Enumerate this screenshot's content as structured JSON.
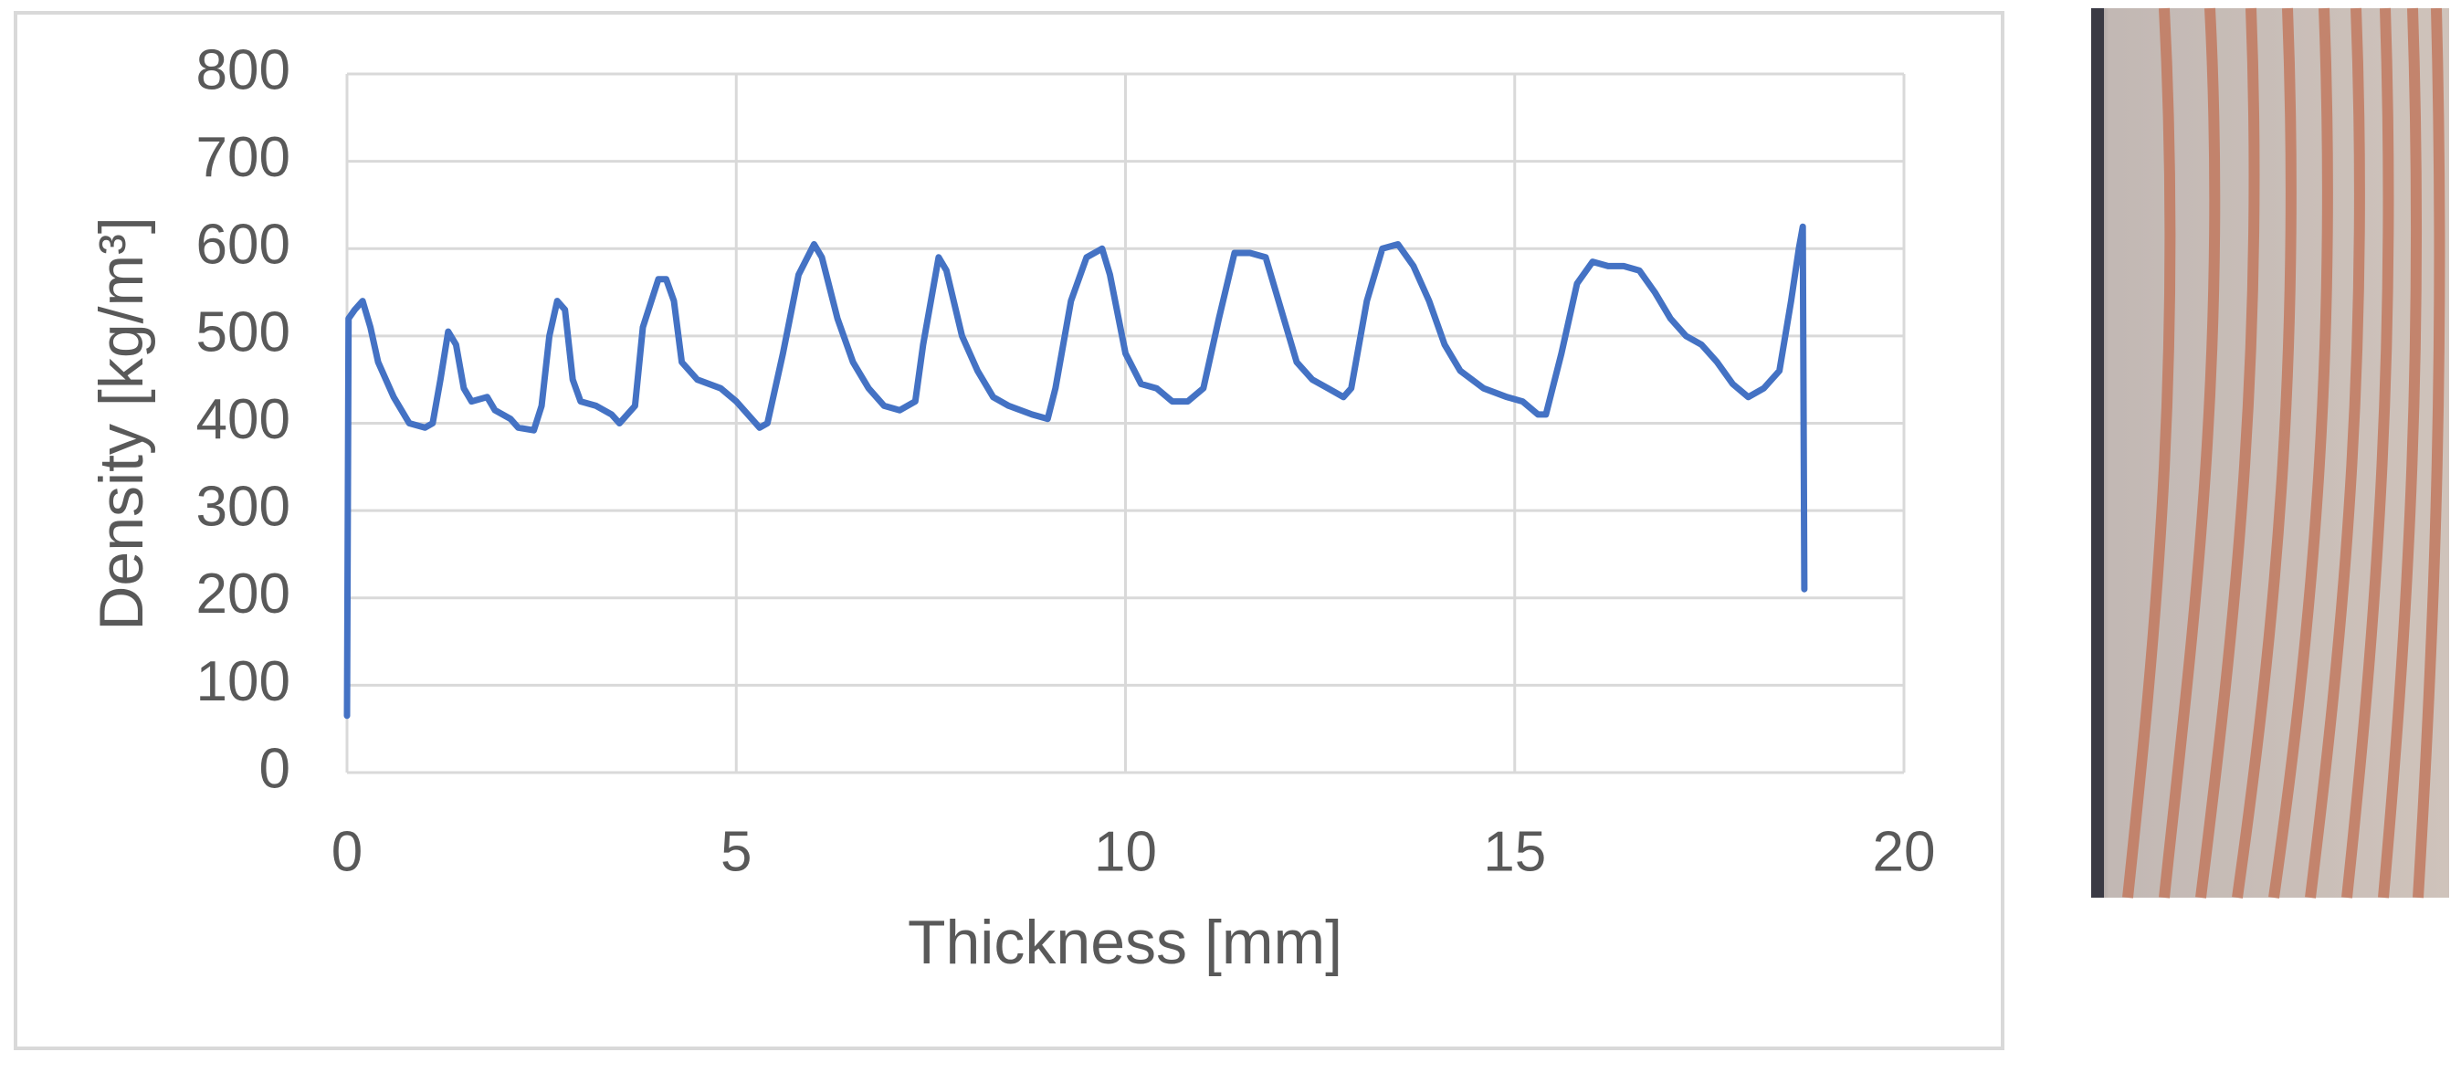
{
  "chart_data": {
    "type": "line",
    "x_label": "Thickness [mm]",
    "y_label": "Density [kg/m³]",
    "xlim": [
      0,
      20
    ],
    "xticks": [
      0,
      5,
      10,
      15,
      20
    ],
    "ylim": [
      0,
      800
    ],
    "yticks": [
      0,
      100,
      200,
      300,
      400,
      500,
      600,
      700,
      800
    ],
    "grid": true,
    "x": [
      0.0,
      0.02,
      0.1,
      0.2,
      0.3,
      0.4,
      0.6,
      0.8,
      1.0,
      1.1,
      1.2,
      1.3,
      1.4,
      1.5,
      1.6,
      1.8,
      1.9,
      2.1,
      2.2,
      2.4,
      2.5,
      2.6,
      2.7,
      2.8,
      2.9,
      3.0,
      3.2,
      3.4,
      3.5,
      3.7,
      3.8,
      4.0,
      4.1,
      4.2,
      4.3,
      4.5,
      4.8,
      5.0,
      5.2,
      5.3,
      5.4,
      5.6,
      5.8,
      6.0,
      6.1,
      6.3,
      6.5,
      6.7,
      6.9,
      7.1,
      7.3,
      7.4,
      7.6,
      7.7,
      7.9,
      8.1,
      8.3,
      8.5,
      8.8,
      9.0,
      9.1,
      9.3,
      9.5,
      9.7,
      9.8,
      10.0,
      10.2,
      10.4,
      10.6,
      10.8,
      11.0,
      11.2,
      11.4,
      11.6,
      11.8,
      12.0,
      12.2,
      12.4,
      12.6,
      12.8,
      12.9,
      13.1,
      13.3,
      13.5,
      13.7,
      13.9,
      14.1,
      14.3,
      14.6,
      14.9,
      15.1,
      15.3,
      15.4,
      15.6,
      15.8,
      16.0,
      16.2,
      16.4,
      16.6,
      16.8,
      17.0,
      17.2,
      17.4,
      17.6,
      17.8,
      18.0,
      18.2,
      18.4,
      18.55,
      18.65,
      18.7,
      18.72
    ],
    "series": [
      {
        "name": "Density",
        "color": "#4472c4",
        "values": [
          65,
          520,
          530,
          540,
          510,
          470,
          430,
          400,
          395,
          400,
          450,
          505,
          490,
          440,
          425,
          430,
          415,
          405,
          395,
          392,
          420,
          500,
          540,
          530,
          450,
          425,
          420,
          410,
          400,
          420,
          510,
          565,
          565,
          540,
          470,
          450,
          440,
          425,
          405,
          395,
          400,
          480,
          570,
          605,
          590,
          520,
          470,
          440,
          420,
          415,
          425,
          490,
          590,
          575,
          500,
          460,
          430,
          420,
          410,
          405,
          440,
          540,
          590,
          600,
          570,
          480,
          445,
          440,
          425,
          425,
          440,
          520,
          595,
          595,
          590,
          530,
          470,
          450,
          440,
          430,
          440,
          540,
          600,
          605,
          580,
          540,
          490,
          460,
          440,
          430,
          425,
          410,
          410,
          480,
          560,
          585,
          580,
          580,
          575,
          550,
          520,
          500,
          490,
          470,
          445,
          430,
          440,
          460,
          540,
          600,
          625,
          210
        ]
      }
    ]
  }
}
